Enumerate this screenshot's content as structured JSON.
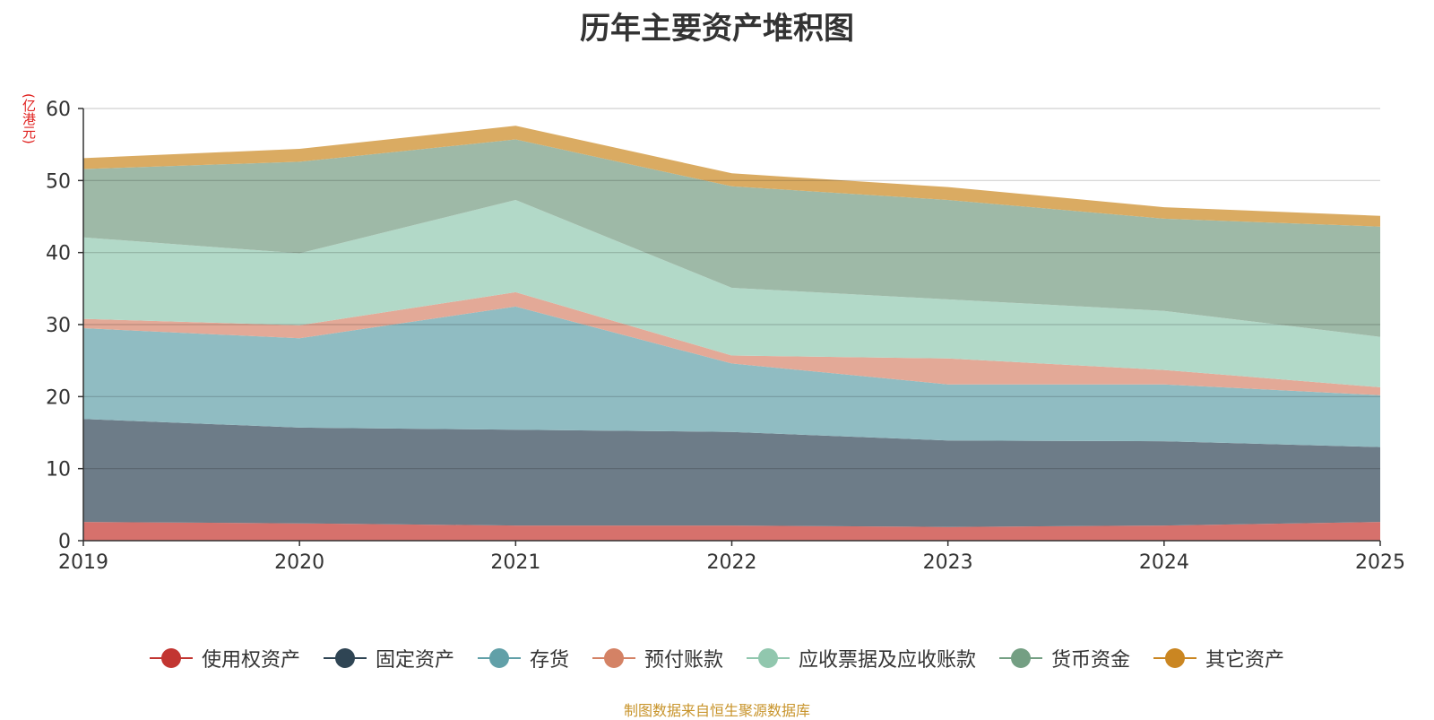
{
  "title": "历年主要资产堆积图",
  "unit_label": "(亿港元)",
  "footer": "制图数据来自恒生聚源数据库",
  "chart_data": {
    "type": "area",
    "stacked": true,
    "title": "历年主要资产堆积图",
    "ylabel": "(亿港元)",
    "xlabel": "",
    "ylim": [
      0,
      60
    ],
    "yticks": [
      0,
      10,
      20,
      30,
      40,
      50,
      60
    ],
    "grid": true,
    "legend_position": "bottom",
    "categories": [
      "2019",
      "2020",
      "2021",
      "2022",
      "2023",
      "2024",
      "2025"
    ],
    "series": [
      {
        "name": "使用权资产",
        "color": "#c23531",
        "fill": "#d6716c",
        "values": [
          2.6,
          2.4,
          2.1,
          2.1,
          1.9,
          2.1,
          2.6
        ]
      },
      {
        "name": "固定资产",
        "color": "#2f4554",
        "fill": "#6d7c88",
        "values": [
          14.3,
          13.3,
          13.3,
          13.0,
          12.0,
          11.7,
          10.4
        ]
      },
      {
        "name": "存货",
        "color": "#61a0a8",
        "fill": "#90bcc2",
        "values": [
          12.6,
          12.4,
          17.1,
          9.5,
          7.8,
          7.9,
          7.2
        ]
      },
      {
        "name": "预付账款",
        "color": "#d48265",
        "fill": "#e3a997",
        "values": [
          1.3,
          1.8,
          2.0,
          1.1,
          3.6,
          2.0,
          1.1
        ]
      },
      {
        "name": "应收票据及应收账款",
        "color": "#91c7ae",
        "fill": "#b2d9c8",
        "values": [
          11.3,
          10.0,
          12.8,
          9.4,
          8.2,
          8.2,
          7.0
        ]
      },
      {
        "name": "货币资金",
        "color": "#749f83",
        "fill": "#9eb9a7",
        "values": [
          9.5,
          12.7,
          8.4,
          14.1,
          13.8,
          12.8,
          15.3
        ]
      },
      {
        "name": "其它资产",
        "color": "#ca8622",
        "fill": "#daab62",
        "values": [
          1.5,
          1.8,
          1.9,
          1.8,
          1.8,
          1.6,
          1.5
        ]
      }
    ]
  }
}
